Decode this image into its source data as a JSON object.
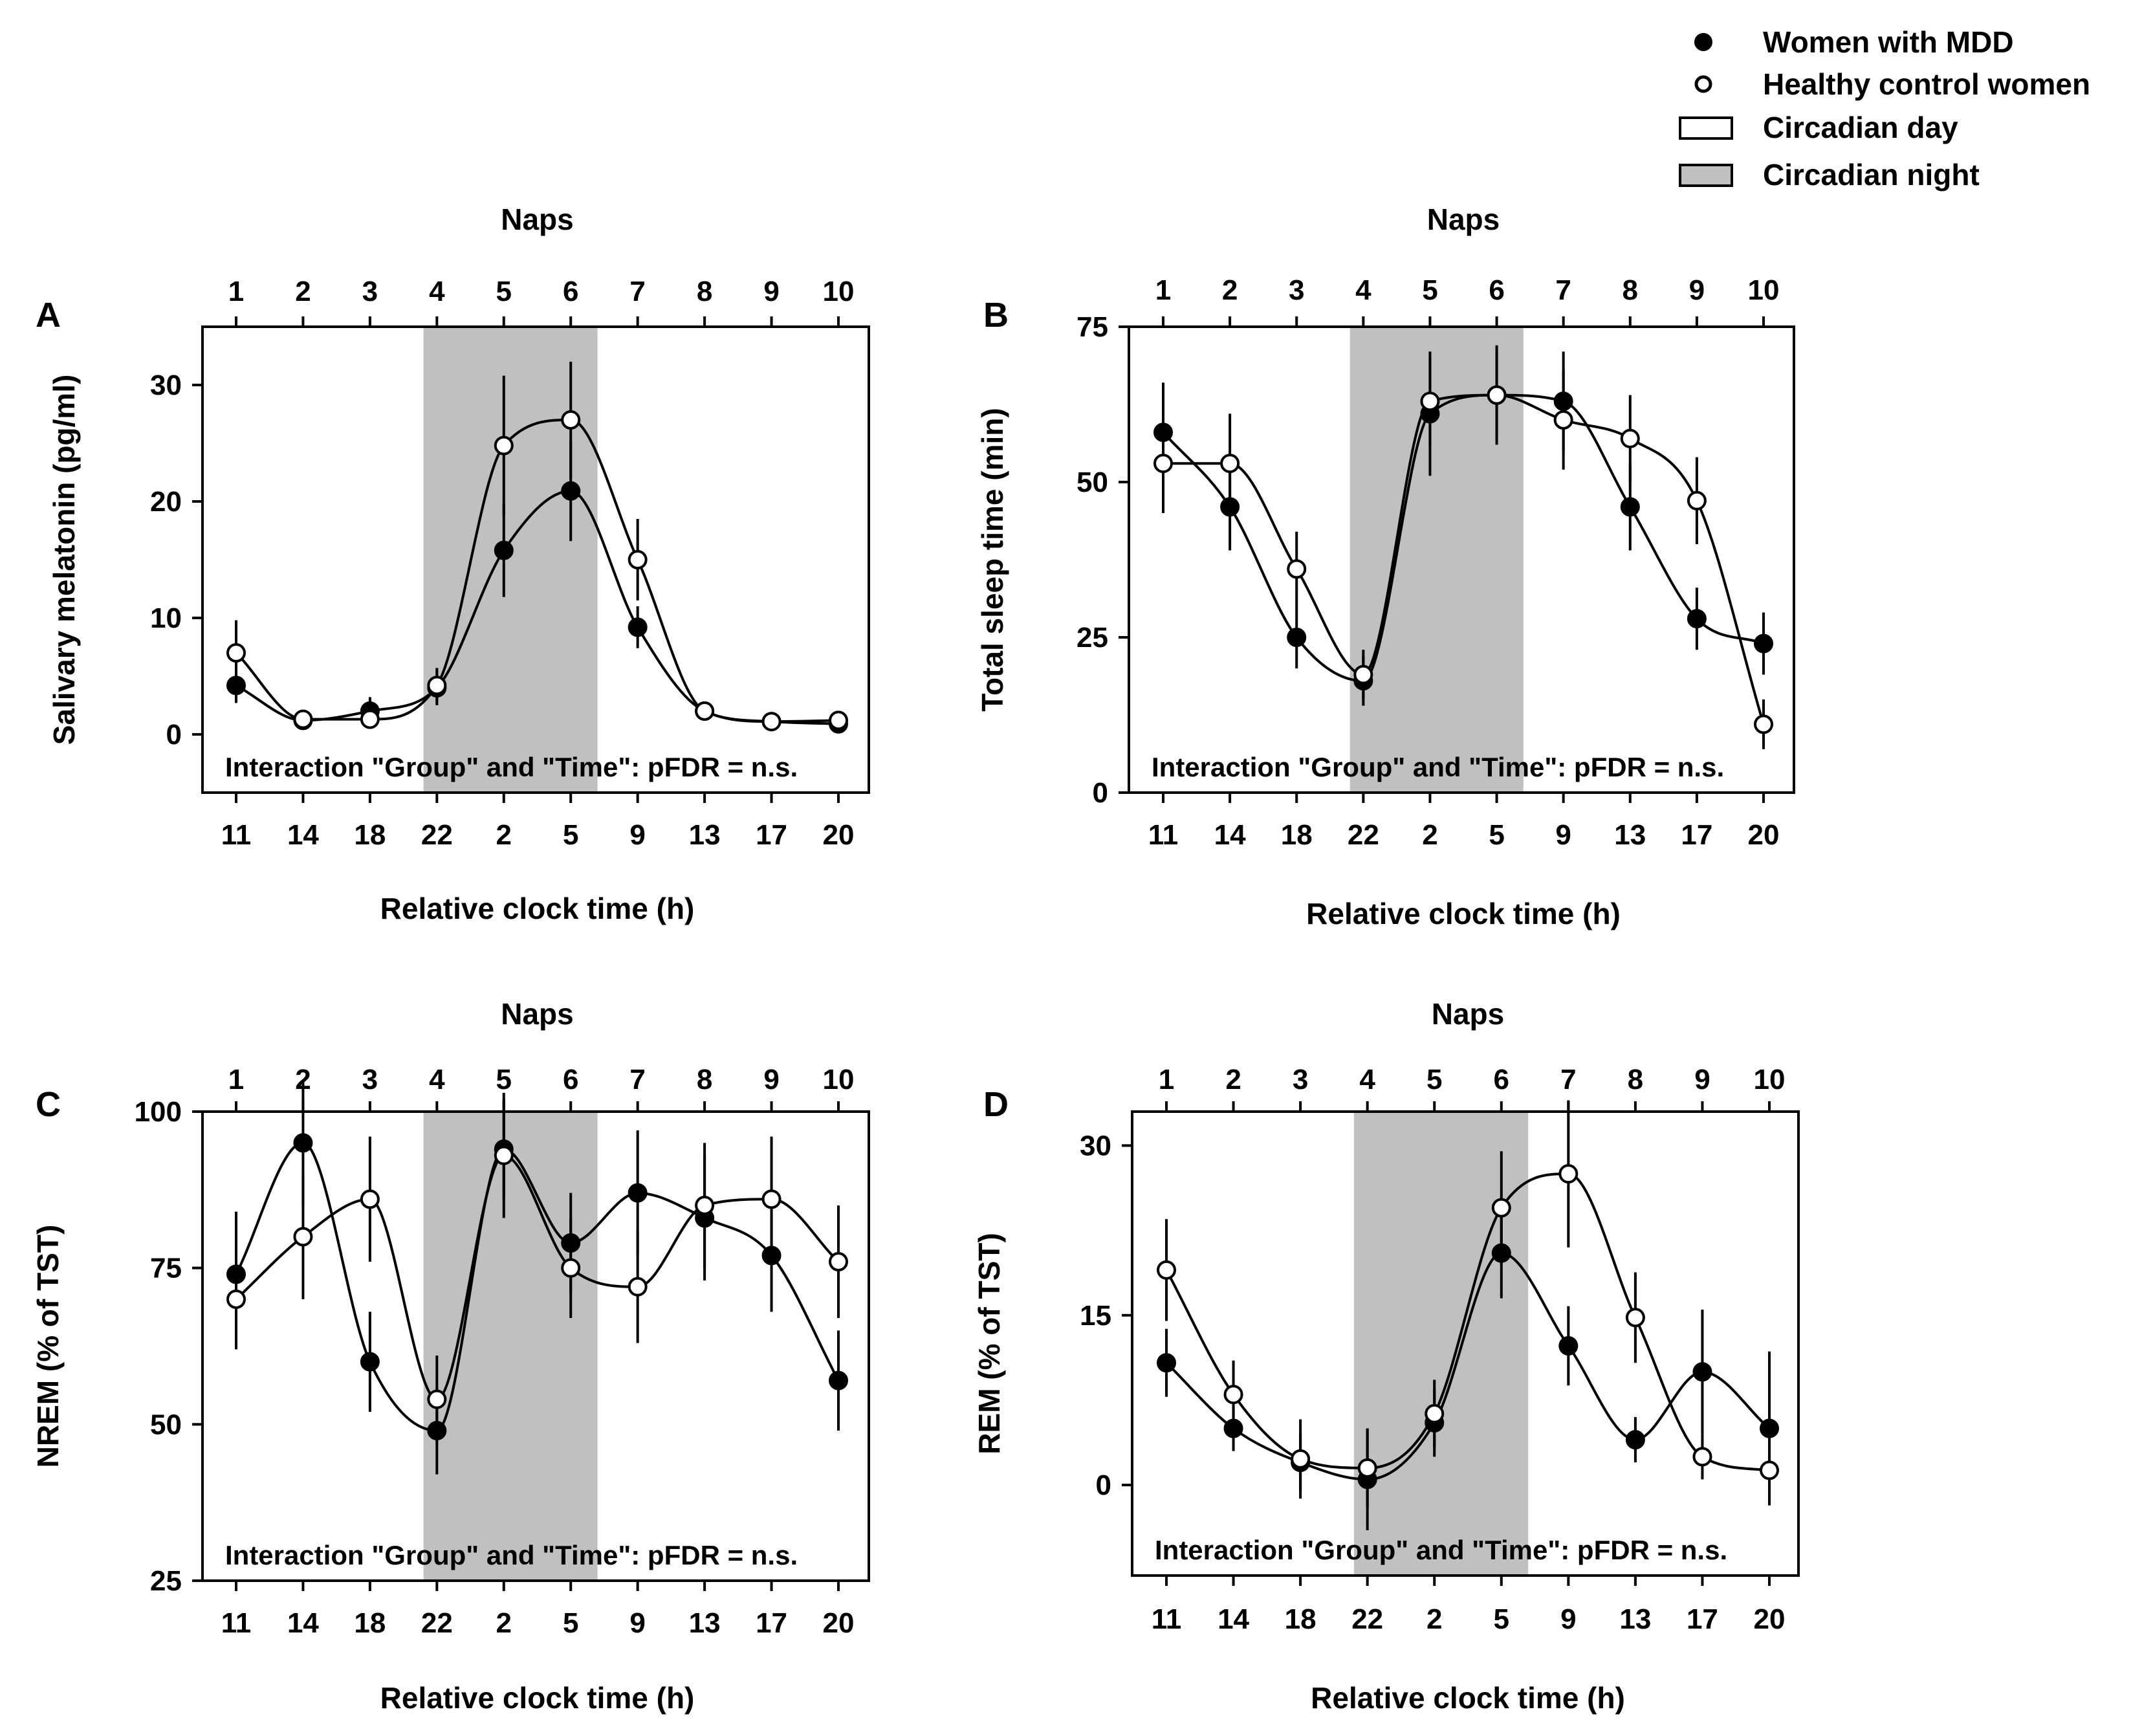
{
  "legend": {
    "items": [
      {
        "label": "Women with MDD",
        "symbol": "filled-circle"
      },
      {
        "label": "Healthy control women",
        "symbol": "open-circle"
      },
      {
        "label": "Circadian day",
        "symbol": "white-rect"
      },
      {
        "label": "Circadian night",
        "symbol": "gray-rect"
      }
    ]
  },
  "colors": {
    "night_shading": "#c0c0c0",
    "mdd_marker": "#000000",
    "control_marker": "#ffffff",
    "axis": "#000000"
  },
  "chart_data": [
    {
      "type": "line",
      "panel_label": "A",
      "top_axis_title": "Naps",
      "top_tick_labels": [
        "1",
        "2",
        "3",
        "4",
        "5",
        "6",
        "7",
        "8",
        "9",
        "10"
      ],
      "xlabel": "Relative clock time (h)",
      "x_tick_labels": [
        "11",
        "14",
        "18",
        "22",
        "2",
        "5",
        "9",
        "13",
        "17",
        "20"
      ],
      "ylabel": "Salivary melatonin (pg/ml)",
      "ylim": [
        -5,
        35
      ],
      "y_ticks": [
        0,
        10,
        20,
        30
      ],
      "night_shading_naps": [
        3.8,
        6.4
      ],
      "annotation": "Interaction \"Group\" and \"Time\": pFDR = n.s.",
      "series": [
        {
          "name": "Women with MDD",
          "marker": "filled",
          "values": [
            4.2,
            1.2,
            2.0,
            4.0,
            15.8,
            20.9,
            9.2,
            2.0,
            1.1,
            0.9
          ],
          "error": [
            1.5,
            0.6,
            1.2,
            1.5,
            4.0,
            4.3,
            1.8,
            0.6,
            0.3,
            0.3
          ]
        },
        {
          "name": "Healthy control women",
          "marker": "open",
          "values": [
            7.0,
            1.3,
            1.3,
            4.2,
            24.8,
            27.0,
            15.0,
            2.0,
            1.1,
            1.2
          ],
          "error": [
            2.8,
            0.5,
            0.5,
            1.5,
            6.0,
            5.0,
            3.5,
            0.6,
            0.3,
            0.3
          ]
        }
      ]
    },
    {
      "type": "line",
      "panel_label": "B",
      "top_axis_title": "Naps",
      "top_tick_labels": [
        "1",
        "2",
        "3",
        "4",
        "5",
        "6",
        "7",
        "8",
        "9",
        "10"
      ],
      "xlabel": "Relative clock time (h)",
      "x_tick_labels": [
        "11",
        "14",
        "18",
        "22",
        "2",
        "5",
        "9",
        "13",
        "17",
        "20"
      ],
      "ylabel": "Total sleep time (min)",
      "ylim": [
        0,
        75
      ],
      "y_ticks": [
        0,
        25,
        50,
        75
      ],
      "night_shading_naps": [
        3.8,
        6.4
      ],
      "annotation": "Interaction \"Group\" and \"Time\": pFDR = n.s.",
      "series": [
        {
          "name": "Women with MDD",
          "marker": "filled",
          "values": [
            58,
            46,
            25,
            18,
            61,
            64,
            63,
            46,
            28,
            24
          ],
          "error": [
            8,
            7,
            5,
            4,
            10,
            8,
            8,
            7,
            5,
            5
          ]
        },
        {
          "name": "Healthy control women",
          "marker": "open",
          "values": [
            53,
            53,
            36,
            19,
            63,
            64,
            60,
            57,
            47,
            11
          ],
          "error": [
            8,
            8,
            6,
            4,
            7,
            7,
            8,
            7,
            7,
            4
          ]
        }
      ]
    },
    {
      "type": "line",
      "panel_label": "C",
      "top_axis_title": "Naps",
      "top_tick_labels": [
        "1",
        "2",
        "3",
        "4",
        "5",
        "6",
        "7",
        "8",
        "9",
        "10"
      ],
      "xlabel": "Relative clock time (h)",
      "x_tick_labels": [
        "11",
        "14",
        "18",
        "22",
        "2",
        "5",
        "9",
        "13",
        "17",
        "20"
      ],
      "ylabel": "NREM (% of TST)",
      "ylim": [
        25,
        100
      ],
      "y_ticks": [
        25,
        50,
        75,
        100
      ],
      "night_shading_naps": [
        3.8,
        6.4
      ],
      "annotation": "Interaction \"Group\" and \"Time\": pFDR = n.s.",
      "series": [
        {
          "name": "Women with MDD",
          "marker": "filled",
          "values": [
            74,
            95,
            60,
            49,
            94,
            79,
            87,
            83,
            77,
            57
          ],
          "error": [
            10,
            10,
            8,
            7,
            8,
            8,
            10,
            10,
            9,
            8
          ]
        },
        {
          "name": "Healthy control women",
          "marker": "open",
          "values": [
            70,
            80,
            86,
            54,
            93,
            75,
            72,
            85,
            86,
            76
          ],
          "error": [
            8,
            10,
            10,
            7,
            10,
            8,
            9,
            10,
            10,
            9
          ]
        }
      ]
    },
    {
      "type": "line",
      "panel_label": "D",
      "top_axis_title": "Naps",
      "top_tick_labels": [
        "1",
        "2",
        "3",
        "4",
        "5",
        "6",
        "7",
        "8",
        "9",
        "10"
      ],
      "xlabel": "Relative clock time (h)",
      "x_tick_labels": [
        "11",
        "14",
        "18",
        "22",
        "2",
        "5",
        "9",
        "13",
        "17",
        "20"
      ],
      "ylabel": "REM (% of TST)",
      "ylim": [
        -8,
        33
      ],
      "y_ticks": [
        0,
        15,
        30
      ],
      "night_shading_naps": [
        3.8,
        6.4
      ],
      "annotation": "Interaction \"Group\" and \"Time\": pFDR = n.s.",
      "series": [
        {
          "name": "Women with MDD",
          "marker": "filled",
          "values": [
            10.8,
            5.0,
            2.0,
            0.5,
            5.5,
            20.5,
            12.3,
            4.0,
            10.0,
            5.0
          ],
          "error": [
            3.0,
            2.0,
            2.5,
            4.5,
            3.0,
            4.0,
            3.5,
            2.0,
            5.5,
            6.8
          ]
        },
        {
          "name": "Healthy control women",
          "marker": "open",
          "values": [
            19.0,
            8.0,
            2.3,
            1.5,
            6.3,
            24.5,
            27.5,
            14.8,
            2.5,
            1.3
          ],
          "error": [
            4.5,
            3.0,
            3.5,
            3.5,
            3.0,
            5.0,
            6.5,
            4.0,
            2.0,
            3.0
          ]
        }
      ]
    }
  ]
}
